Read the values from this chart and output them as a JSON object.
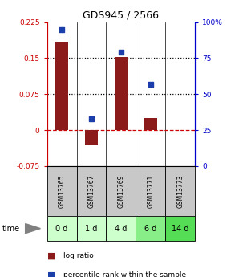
{
  "title": "GDS945 / 2566",
  "categories": [
    "GSM13765",
    "GSM13767",
    "GSM13769",
    "GSM13771",
    "GSM13773"
  ],
  "time_labels": [
    "0 d",
    "1 d",
    "4 d",
    "6 d",
    "14 d"
  ],
  "log_ratio": [
    0.185,
    -0.03,
    0.152,
    0.025,
    0.0
  ],
  "percentile_rank": [
    95,
    33,
    79,
    57,
    -999
  ],
  "bar_color": "#8B1A1A",
  "dot_color": "#1C3EAA",
  "ylim_left": [
    -0.075,
    0.225
  ],
  "ylim_right": [
    0,
    100
  ],
  "yticks_left": [
    -0.075,
    0,
    0.075,
    0.15,
    0.225
  ],
  "yticks_right": [
    0,
    25,
    50,
    75,
    100
  ],
  "hlines_dotted": [
    0.075,
    0.15
  ],
  "hline_dashed": 0,
  "left_axis_color": "#CC0000",
  "right_axis_color": "#0000CC",
  "time_row_colors": [
    "#ccffcc",
    "#ccffcc",
    "#ccffcc",
    "#88ee88",
    "#55dd55"
  ],
  "gsm_row_color": "#c8c8c8",
  "legend_log_ratio": "log ratio",
  "legend_percentile": "percentile rank within the sample",
  "bar_width": 0.45,
  "figsize": [
    2.93,
    3.45
  ],
  "dpi": 100
}
